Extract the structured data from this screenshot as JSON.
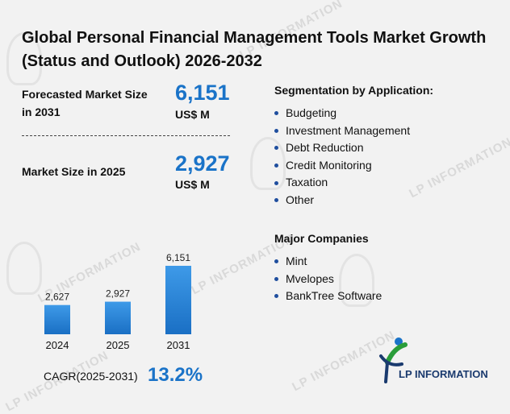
{
  "title": "Global Personal Financial Management Tools Market Growth (Status and Outlook) 2026-2032",
  "forecast": {
    "label": "Forecasted Market Size in 2031",
    "value": "6,151",
    "unit": "US$ M"
  },
  "current": {
    "label": "Market Size in 2025",
    "value": "2,927",
    "unit": "US$ M"
  },
  "segmentation": {
    "title": "Segmentation by Application:",
    "items": [
      "Budgeting",
      "Investment Management",
      "Debt Reduction",
      "Credit Monitoring",
      "Taxation",
      "Other"
    ]
  },
  "companies": {
    "title": "Major Companies",
    "items": [
      "Mint",
      "Mvelopes",
      "BankTree Software"
    ]
  },
  "cagr": {
    "label": "CAGR(2025-2031)",
    "value": "13.2%"
  },
  "logo": {
    "text": "LP INFORMATION"
  },
  "watermark": {
    "text": "LP INFORMATION"
  },
  "colors": {
    "accent": "#1a73c8",
    "bar_top": "#3e9ae8",
    "bar_bottom": "#1a6fc4"
  },
  "chart_data": {
    "type": "bar",
    "categories": [
      "2024",
      "2025",
      "2031"
    ],
    "values": [
      2627,
      2927,
      6151
    ],
    "value_labels": [
      "2,627",
      "2,927",
      "6,151"
    ],
    "title": "",
    "xlabel": "",
    "ylabel": "",
    "grid": false
  }
}
